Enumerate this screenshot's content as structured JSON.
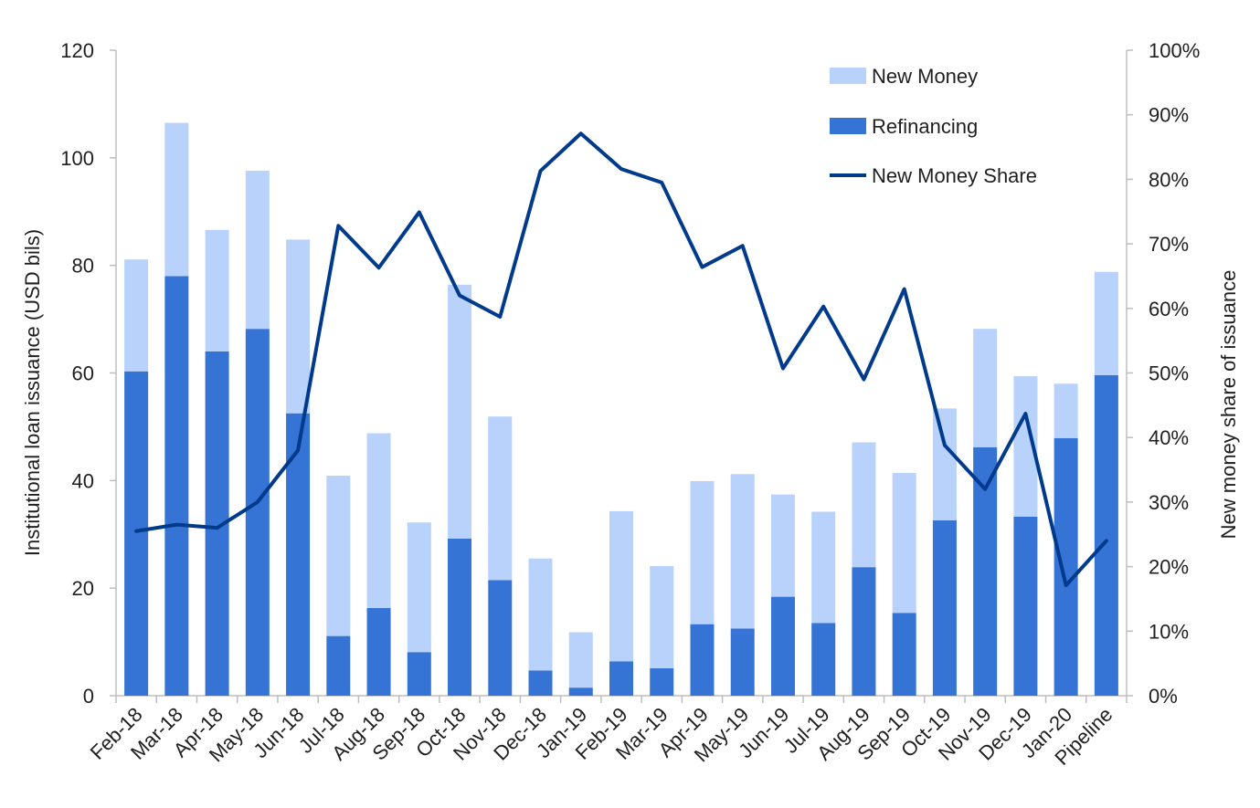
{
  "chart_data": {
    "type": "bar",
    "categories": [
      "Feb-18",
      "Mar-18",
      "Apr-18",
      "May-18",
      "Jun-18",
      "Jul-18",
      "Aug-18",
      "Sep-18",
      "Oct-18",
      "Nov-18",
      "Dec-18",
      "Jan-19",
      "Feb-19",
      "Mar-19",
      "Apr-19",
      "May-19",
      "Jun-19",
      "Jul-19",
      "Aug-19",
      "Sep-19",
      "Oct-19",
      "Nov-19",
      "Dec-19",
      "Jan-20",
      "Pipeline"
    ],
    "ylabel": "Institutional loan issuance (USD bils)",
    "y2label": "New money share of issuance",
    "ylim": [
      0,
      120
    ],
    "y2lim": [
      0,
      1
    ],
    "yticks": [
      "0",
      "20",
      "40",
      "60",
      "80",
      "100",
      "120"
    ],
    "y2ticks": [
      "0%",
      "10%",
      "20%",
      "30%",
      "40%",
      "50%",
      "60%",
      "70%",
      "80%",
      "90%",
      "100%"
    ],
    "legend_position": "top-right",
    "series": [
      {
        "name": "Refinancing",
        "kind": "bar-stacked",
        "color": "#3573d4",
        "values": [
          60.3,
          78.0,
          64.0,
          68.2,
          52.5,
          11.1,
          16.3,
          8.1,
          29.2,
          21.5,
          4.7,
          1.5,
          6.4,
          5.1,
          13.3,
          12.5,
          18.4,
          13.5,
          23.9,
          15.4,
          32.6,
          46.2,
          33.3,
          47.9,
          59.6
        ]
      },
      {
        "name": "New Money",
        "kind": "bar-stacked",
        "color": "#b8d2fc",
        "values": [
          20.8,
          28.5,
          22.6,
          29.4,
          32.3,
          29.8,
          32.5,
          24.1,
          47.2,
          30.4,
          20.8,
          10.3,
          27.9,
          19.0,
          26.6,
          28.7,
          19.0,
          20.7,
          23.2,
          26.0,
          20.8,
          22.0,
          26.1,
          10.1,
          19.2
        ]
      },
      {
        "name": "New Money Share",
        "kind": "line",
        "color": "#003a8c",
        "axis": "right",
        "values": [
          0.255,
          0.265,
          0.26,
          0.3,
          0.38,
          0.728,
          0.663,
          0.749,
          0.62,
          0.587,
          0.813,
          0.871,
          0.816,
          0.795,
          0.664,
          0.697,
          0.507,
          0.603,
          0.49,
          0.63,
          0.388,
          0.32,
          0.437,
          0.171,
          0.24
        ]
      }
    ]
  }
}
